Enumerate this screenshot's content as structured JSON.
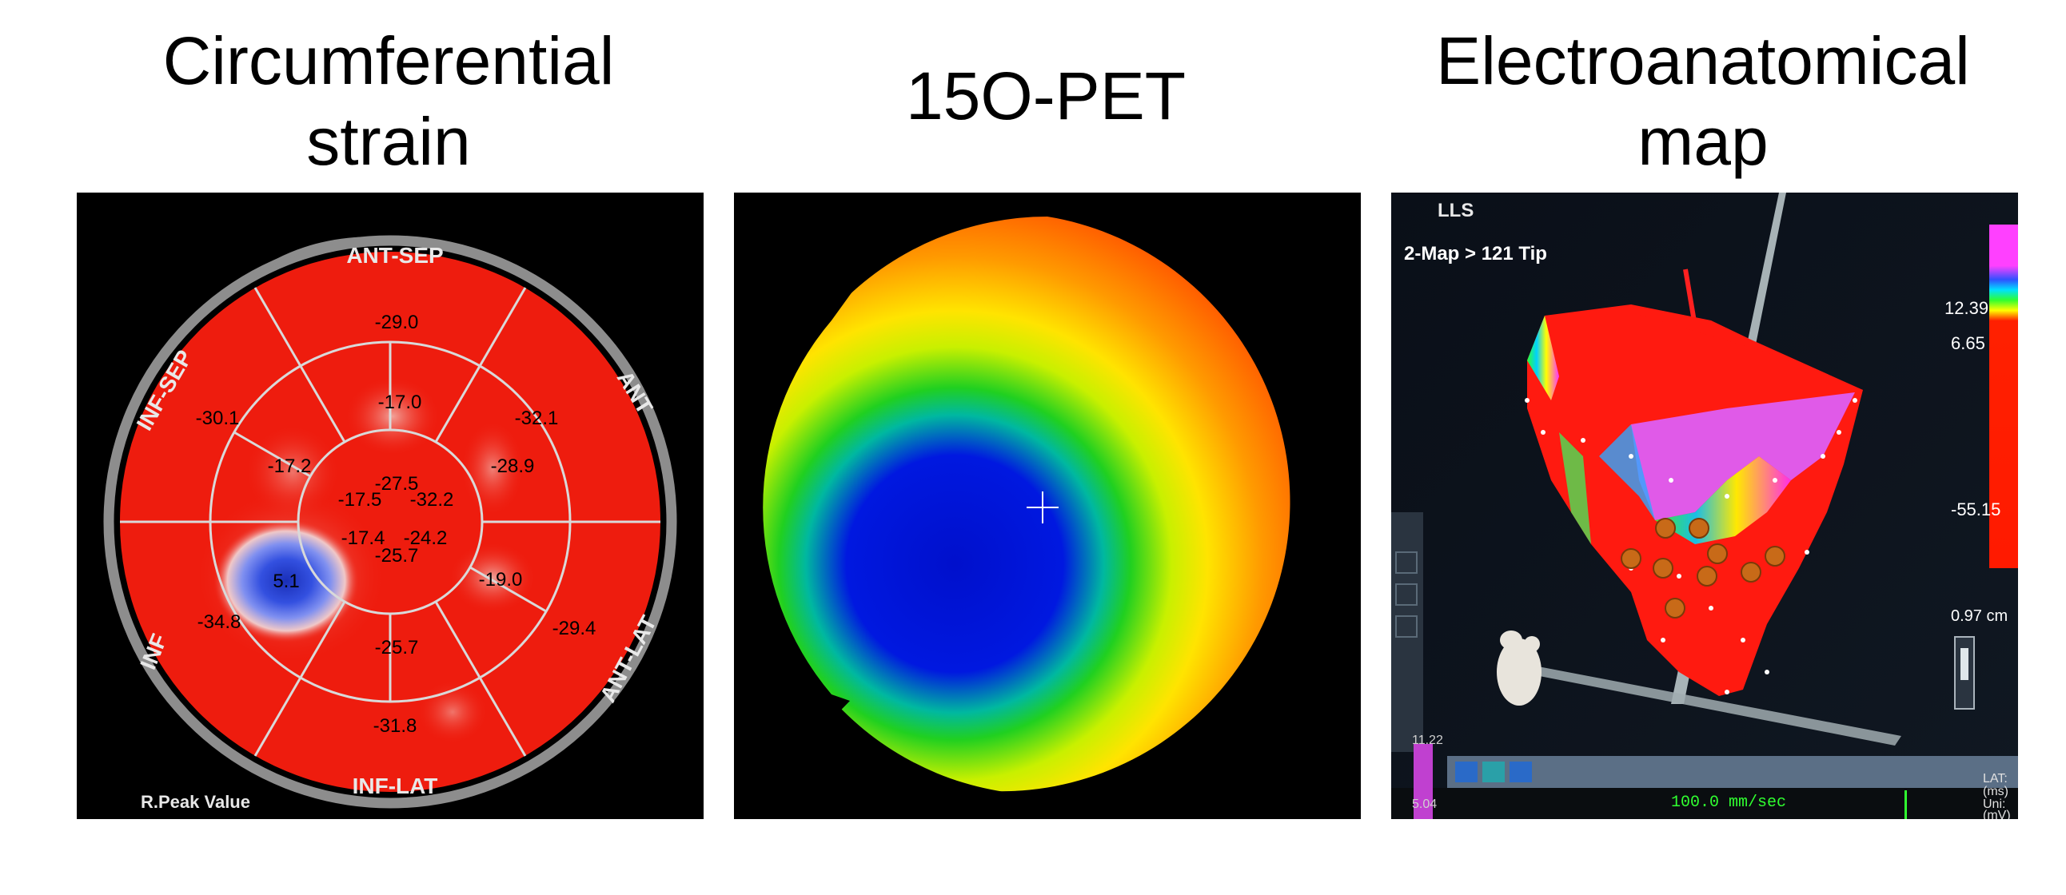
{
  "titles": {
    "strain": [
      "Circumferential",
      "strain"
    ],
    "pet": "15O-PET",
    "eam": [
      "Electroanatomical",
      "map"
    ]
  },
  "strain_panel": {
    "walls": {
      "ant_sep": "ANT-SEP",
      "ant": "ANT",
      "ant_lat": "ANT-LAT",
      "inf_lat": "INF-LAT",
      "inf": "INF",
      "inf_sep": "INF-SEP"
    },
    "footer": "R.Peak Value",
    "segments": {
      "basal": [
        "-29.0",
        "-32.1",
        "-29.4",
        "-31.8",
        "-34.8",
        "-30.1"
      ],
      "mid": [
        "-17.0",
        "-28.9",
        "-19.0",
        "-25.7",
        "5.1",
        "-17.2"
      ],
      "apical": [
        "-27.5",
        "-32.2",
        "-24.2",
        "-25.7",
        "-17.4",
        "-17.5"
      ]
    },
    "colors": {
      "normal": "#ee1c0e",
      "impaired": "#2f46d6",
      "ring": "#8a8a8a"
    }
  },
  "pet_panel": {
    "colors": [
      "#0010d0",
      "#00c820",
      "#ffe000",
      "#ff8c00",
      "#ee2a00"
    ]
  },
  "eam_panel": {
    "view_label": "LLS",
    "map_label": "2-Map > 121 Tip",
    "scale_top": "12.39",
    "scale_mid": "6.65",
    "scale_bottom": "-55.15",
    "distance": "0.97 cm",
    "left_value_1": "11.22",
    "left_value_2": "5.04",
    "sweep_speed": "100.0 mm/sec",
    "lat_unit": "LAT:",
    "lat_ms": "(ms)",
    "uni_unit": "Uni:",
    "uni_mv": "(mV)"
  }
}
